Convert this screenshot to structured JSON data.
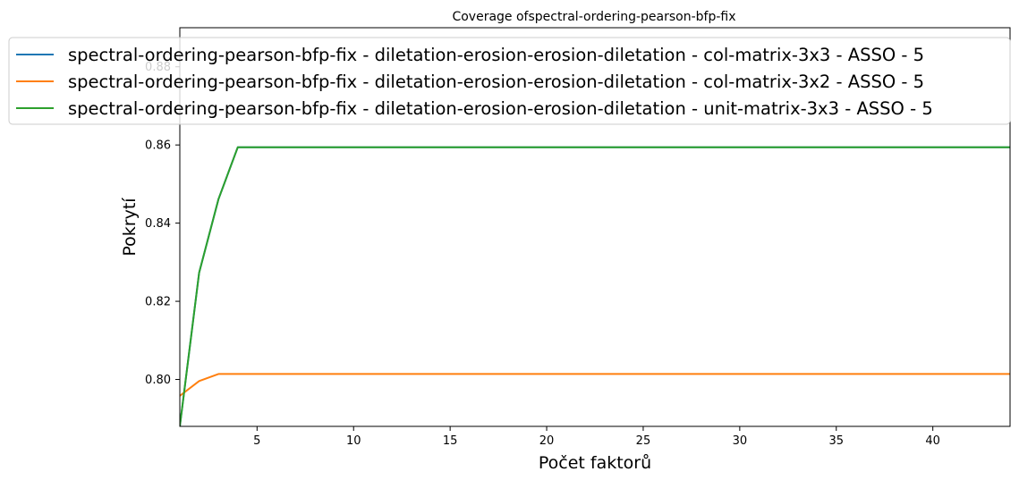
{
  "chart_data": {
    "type": "line",
    "title": "Coverage ofspectral-ordering-pearson-bfp-fix",
    "xlabel": "Počet faktorů",
    "ylabel": "Pokrytí",
    "xlim": [
      1,
      44
    ],
    "ylim": [
      0.788,
      0.89
    ],
    "xticks": [
      5,
      10,
      15,
      20,
      25,
      30,
      35,
      40
    ],
    "yticks": [
      0.8,
      0.82,
      0.84,
      0.86,
      0.88
    ],
    "ytick_labels": [
      "0.80",
      "0.82",
      "0.84",
      "0.86",
      "0.88"
    ],
    "legend_position": "top",
    "series": [
      {
        "name": "spectral-ordering-pearson-bfp-fix - diletation-erosion-erosion-diletation - col-matrix-3x3 - ASSO - 5",
        "color": "#1f77b4",
        "x": [
          1,
          2,
          3,
          4,
          5,
          10,
          15,
          20,
          25,
          30,
          35,
          40,
          44
        ],
        "y": [
          0.788,
          0.8273,
          0.8461,
          0.8594,
          0.8594,
          0.8594,
          0.8594,
          0.8594,
          0.8594,
          0.8594,
          0.8594,
          0.8594,
          0.8594
        ]
      },
      {
        "name": "spectral-ordering-pearson-bfp-fix - diletation-erosion-erosion-diletation - col-matrix-3x2 - ASSO - 5",
        "color": "#ff7f0e",
        "x": [
          1,
          2,
          3,
          4,
          5,
          10,
          15,
          20,
          25,
          30,
          35,
          40,
          44
        ],
        "y": [
          0.7958,
          0.7996,
          0.8014,
          0.8014,
          0.8014,
          0.8014,
          0.8014,
          0.8014,
          0.8014,
          0.8014,
          0.8014,
          0.8014,
          0.8014
        ]
      },
      {
        "name": "spectral-ordering-pearson-bfp-fix - diletation-erosion-erosion-diletation - unit-matrix-3x3 - ASSO - 5",
        "color": "#2ca02c",
        "x": [
          1,
          2,
          3,
          4,
          5,
          10,
          15,
          20,
          25,
          30,
          35,
          40,
          44
        ],
        "y": [
          0.788,
          0.8273,
          0.8461,
          0.8594,
          0.8594,
          0.8594,
          0.8594,
          0.8594,
          0.8594,
          0.8594,
          0.8594,
          0.8594,
          0.8594
        ]
      }
    ]
  }
}
